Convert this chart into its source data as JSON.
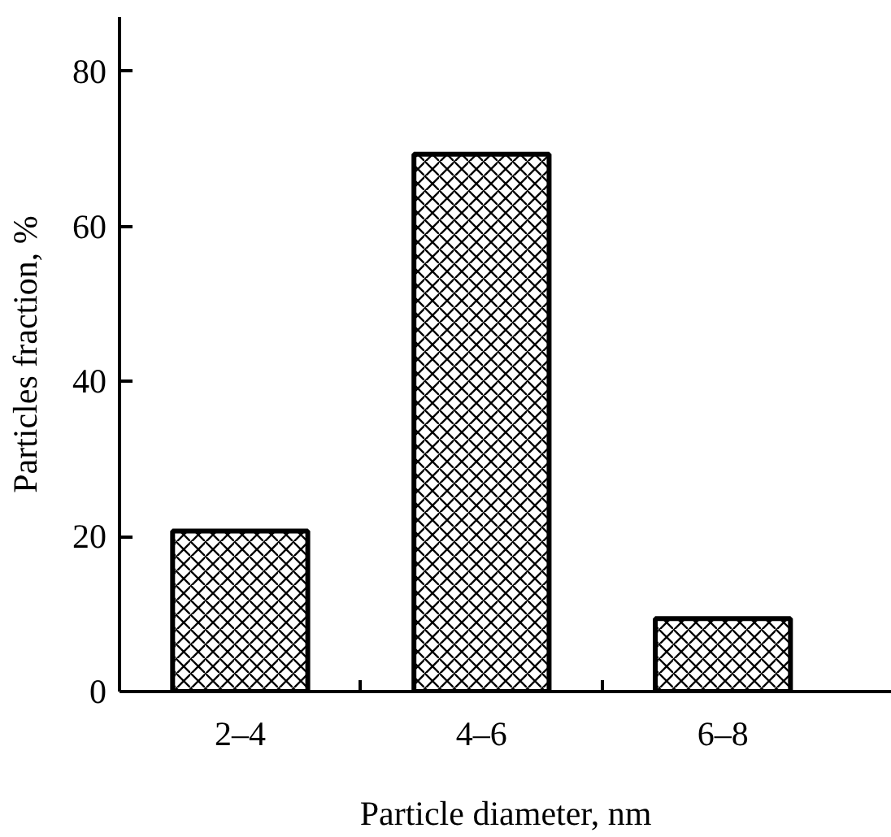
{
  "chart_data": {
    "type": "bar",
    "xlabel": "Particle diameter, nm",
    "ylabel": "Particles fraction, %",
    "categories": [
      "2–4",
      "4–6",
      "6–8"
    ],
    "values": [
      20.7,
      69.3,
      9.4
    ],
    "color": "#ffffff",
    "ylim": [
      0,
      87
    ],
    "yticks": [
      0,
      20,
      40,
      60,
      80
    ],
    "grid": false
  }
}
